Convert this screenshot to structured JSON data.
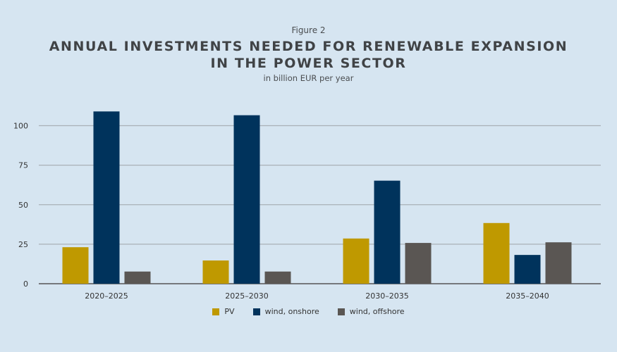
{
  "figure_label": "Figure 2",
  "chart_data": {
    "type": "bar",
    "title": "ANNUAL INVESTMENTS NEEDED FOR RENEWABLE EXPANSION IN THE POWER SECTOR",
    "title_lines": [
      "ANNUAL INVESTMENTS NEEDED FOR RENEWABLE EXPANSION",
      "IN THE POWER SECTOR"
    ],
    "subtitle": "in billion EUR per year",
    "xlabel": "",
    "ylabel": "",
    "ylim": [
      0,
      110
    ],
    "yticks": [
      0,
      25,
      50,
      75,
      100
    ],
    "grid": true,
    "legend_position": "bottom",
    "categories": [
      "2020–2025",
      "2025–2030",
      "2030–2035",
      "2035–2040"
    ],
    "series": [
      {
        "name": "PV",
        "color": "#bf9900",
        "values": [
          23.1,
          14.7,
          28.6,
          38.4
        ]
      },
      {
        "name": "wind, onshore",
        "color": "#00335c",
        "values": [
          109,
          106.6,
          65.2,
          18.2
        ]
      },
      {
        "name": "wind, offshore",
        "color": "#5a5653",
        "values": [
          7.7,
          7.7,
          25.8,
          26.2
        ]
      }
    ]
  }
}
